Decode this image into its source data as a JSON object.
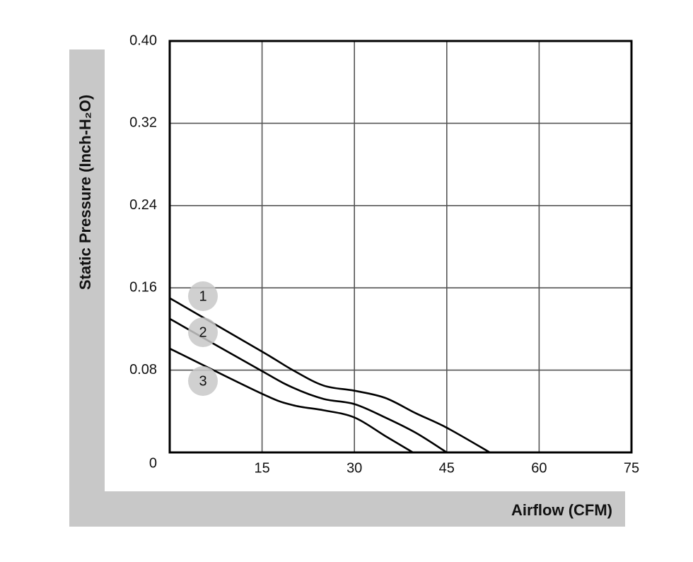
{
  "chart_data": {
    "type": "line",
    "x_label": "Airflow (CFM)",
    "y_label": "Static Pressure (Inch-H₂O)",
    "xlim": [
      0,
      75
    ],
    "xticks": [
      15,
      30,
      45,
      60,
      75
    ],
    "ylim": [
      0,
      0.4
    ],
    "yticks": [
      0,
      0.08,
      0.16,
      0.24,
      0.32,
      {
        "value": 0.4,
        "label": "0.40"
      }
    ],
    "grid": true,
    "series": [
      {
        "name": "1",
        "color": "#000000",
        "x": [
          0,
          15,
          20,
          25,
          30,
          35,
          40,
          45,
          52
        ],
        "values": [
          0.15,
          0.098,
          0.08,
          0.065,
          0.06,
          0.053,
          0.038,
          0.024,
          0
        ]
      },
      {
        "name": "2",
        "color": "#000000",
        "x": [
          0,
          15,
          20,
          25,
          30,
          35,
          40,
          45
        ],
        "values": [
          0.13,
          0.079,
          0.063,
          0.052,
          0.047,
          0.034,
          0.019,
          0
        ]
      },
      {
        "name": "3",
        "color": "#000000",
        "x": [
          0,
          15,
          20,
          25,
          30,
          35,
          39.5
        ],
        "values": [
          0.101,
          0.057,
          0.046,
          0.041,
          0.034,
          0.016,
          0
        ]
      }
    ]
  }
}
